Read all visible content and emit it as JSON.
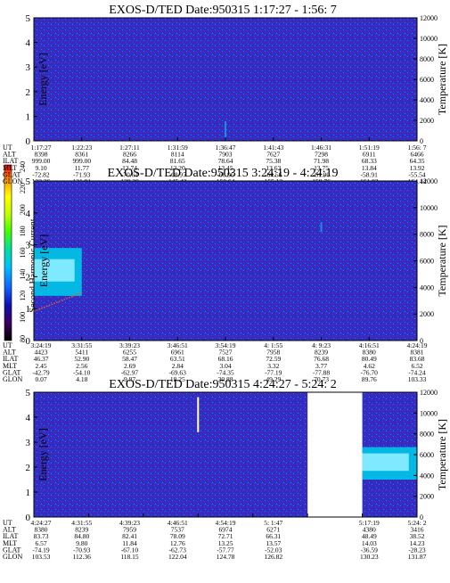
{
  "colors": {
    "spectrum_background": "#2a2fd0",
    "noise_red": "#b00030",
    "noise_blue": "#1b8be0",
    "band_light": "#7fe9ff",
    "band_mid": "#00c8e8",
    "colorbar_stops": [
      "#000000",
      "#3a0060",
      "#1010b0",
      "#1060ff",
      "#00c0ff",
      "#00e0a0",
      "#40ff00",
      "#c0ff00",
      "#ffff00",
      "#ffa000",
      "#ff0000"
    ]
  },
  "colorbar": {
    "label": "Second Harmonic Current",
    "ticks": [
      "80",
      "100",
      "120",
      "140",
      "160",
      "180",
      "200",
      "220",
      "240"
    ]
  },
  "panels": [
    {
      "title": "EXOS-D/TED   Date:950315  1:17:27 - 1:56: 7",
      "ylabel_left": "Energy [eV]",
      "ylabel_right": "Temperature [K]",
      "yticks_left": [
        "0",
        "1",
        "2",
        "3",
        "4",
        "5"
      ],
      "yticks_right": [
        "0",
        "2000",
        "4000",
        "6000",
        "8000",
        "10000",
        "12000"
      ],
      "table": {
        "rows": [
          "UT",
          "ALT",
          "ILAT",
          "MLT",
          "GLAT",
          "GLON"
        ],
        "columns": [
          [
            "1:17:27",
            "8398",
            "999.00",
            "9.10",
            "-72.82",
            "123.36"
          ],
          [
            "1:22:23",
            "8361",
            "999.00",
            "11.77",
            "-71.93",
            "131.91"
          ],
          [
            "1:27:11",
            "8266",
            "84.48",
            "12.74",
            "-70.64",
            "139.20"
          ],
          [
            "1:31:59",
            "8114",
            "81.65",
            "13.20",
            "-68.97",
            "145.42"
          ],
          [
            "1:36:47",
            "7903",
            "78.64",
            "13.45",
            "-66.96",
            "150.64"
          ],
          [
            "1:41:43",
            "7627",
            "75.38",
            "13.63",
            "-64.56",
            "155.12"
          ],
          [
            "1:46:31",
            "7298",
            "71.98",
            "13.75",
            "-61.90",
            "158.76"
          ],
          [
            "1:51:19",
            "6911",
            "68.33",
            "13.84",
            "-58.91",
            "161.83"
          ],
          [
            "1:56: 7",
            "6466",
            "64.35",
            "13.92",
            "-55.54",
            "164.44"
          ]
        ]
      }
    },
    {
      "title": "EXOS-D/TED   Date:950315  3:24:19 - 4:24:19",
      "ylabel_left": "Energy [eV]",
      "ylabel_right": "Temperature [K]",
      "yticks_left": [
        "0",
        "1",
        "2",
        "3",
        "4",
        "5"
      ],
      "yticks_right": [
        "0",
        "2000",
        "4000",
        "6000",
        "8000",
        "10000",
        "12000"
      ],
      "table": {
        "rows": [
          "UT",
          "ALT",
          "ILAT",
          "MLT",
          "GLAT",
          "GLON"
        ],
        "columns": [
          [
            "3:24:19",
            "4423",
            "46.37",
            "2.45",
            "-42.79",
            "0.07"
          ],
          [
            "3:31:55",
            "5411",
            "52.90",
            "2.56",
            "-54.10",
            "4.18"
          ],
          [
            "3:39:23",
            "6255",
            "58.47",
            "2.69",
            "-62.97",
            "9.87"
          ],
          [
            "3:46:51",
            "6961",
            "63.51",
            "2.84",
            "-69.63",
            "18.25"
          ],
          [
            "3:54:19",
            "7527",
            "68.16",
            "3.04",
            "-74.35",
            "30.88"
          ],
          [
            "4: 1:55",
            "7958",
            "72.59",
            "3.32",
            "-77.19",
            "49.29"
          ],
          [
            "4: 9:23",
            "8239",
            "76.68",
            "3.77",
            "-77.88",
            "70.73"
          ],
          [
            "4:16:51",
            "8380",
            "80.49",
            "4.62",
            "-76.70",
            "89.76"
          ],
          [
            "4:24:19",
            "8381",
            "83.68",
            "6.52",
            "-74.24",
            "103.33"
          ]
        ]
      }
    },
    {
      "title": "EXOS-D/TED   Date:950315  4:24:27 - 5:24: 2",
      "ylabel_left": "Energy [eV]",
      "ylabel_right": "Temperature [K]",
      "yticks_left": [
        "0",
        "1",
        "2",
        "3",
        "4",
        "5"
      ],
      "yticks_right": [
        "0",
        "2000",
        "4000",
        "6000",
        "8000",
        "10000",
        "12000"
      ],
      "table": {
        "rows": [
          "UT",
          "ALT",
          "ILAT",
          "MLT",
          "GLAT",
          "GLON"
        ],
        "columns": [
          [
            "4:24:27",
            "8380",
            "83.73",
            "6.57",
            "-74.19",
            "103.53"
          ],
          [
            "4:31:55",
            "8239",
            "84.80",
            "9.80",
            "-70.93",
            "112.36"
          ],
          [
            "4:39:23",
            "7959",
            "82.41",
            "11.84",
            "-67.10",
            "118.15"
          ],
          [
            "4:46:51",
            "7537",
            "78.09",
            "12.76",
            "-62.73",
            "122.04"
          ],
          [
            "4:54:19",
            "6974",
            "72.71",
            "13.25",
            "-57.77",
            "124.78"
          ],
          [
            "5: 1:47",
            "6271",
            "66.31",
            "13.57",
            "-52.03",
            "126.82"
          ],
          [
            "",
            "",
            "",
            "",
            "",
            ""
          ],
          [
            "5:17:19",
            "4380",
            "48.49",
            "14.03",
            "-36.59",
            "130.23"
          ],
          [
            "5:24: 2",
            "3416",
            "38.52",
            "14.23",
            "-28.23",
            "131.87"
          ]
        ]
      }
    }
  ],
  "chart_data": [
    {
      "type": "heatmap",
      "title": "EXOS-D/TED   Date:950315  1:17:27 - 1:56: 7",
      "ylabel": "Energy [eV]",
      "ylabel_right": "Temperature [K]",
      "ylim": [
        0,
        5
      ],
      "ylim_right": [
        0,
        12000
      ],
      "x": [
        "1:17:27",
        "1:22:23",
        "1:27:11",
        "1:31:59",
        "1:36:47",
        "1:41:43",
        "1:46:31",
        "1:51:19",
        "1:56: 7"
      ],
      "features": [
        {
          "kind": "spike",
          "ut": "1:36:47",
          "energy_range": [
            0.1,
            0.8
          ]
        }
      ]
    },
    {
      "type": "heatmap",
      "title": "EXOS-D/TED   Date:950315  3:24:19 - 4:24:19",
      "ylabel": "Energy [eV]",
      "ylabel_right": "Temperature [K]",
      "ylim": [
        0,
        5
      ],
      "ylim_right": [
        0,
        12000
      ],
      "x": [
        "3:24:19",
        "3:31:55",
        "3:39:23",
        "3:46:51",
        "3:54:19",
        "4: 1:55",
        "4: 9:23",
        "4:16:51",
        "4:24:19"
      ],
      "features": [
        {
          "kind": "band",
          "ut_range": [
            "3:24:19",
            "3:31:55"
          ],
          "energy_range": [
            1.4,
            2.9
          ],
          "center": 2.2
        },
        {
          "kind": "temperature_trace",
          "ut_range": [
            "3:24:19",
            "3:31:55"
          ],
          "temperature_range": [
            2200,
            3600
          ]
        },
        {
          "kind": "spike",
          "ut": "4: 9:23",
          "energy_range": [
            3.4,
            3.7
          ]
        }
      ]
    },
    {
      "type": "heatmap",
      "title": "EXOS-D/TED   Date:950315  4:24:27 - 5:24: 2",
      "ylabel": "Energy [eV]",
      "ylabel_right": "Temperature [K]",
      "ylim": [
        0,
        5
      ],
      "ylim_right": [
        0,
        12000
      ],
      "x": [
        "4:24:27",
        "4:31:55",
        "4:39:23",
        "4:46:51",
        "4:54:19",
        "5: 1:47",
        "5:17:19",
        "5:24: 2"
      ],
      "features": [
        {
          "kind": "spike",
          "ut": "4:46:51",
          "energy_range": [
            3.4,
            4.8
          ]
        },
        {
          "kind": "data_gap",
          "ut_range": [
            "5: 1:47",
            "5:17:19"
          ]
        },
        {
          "kind": "band",
          "ut_range": [
            "5:17:19",
            "5:24: 2"
          ],
          "energy_range": [
            1.5,
            2.8
          ],
          "center": 2.2
        }
      ]
    }
  ]
}
